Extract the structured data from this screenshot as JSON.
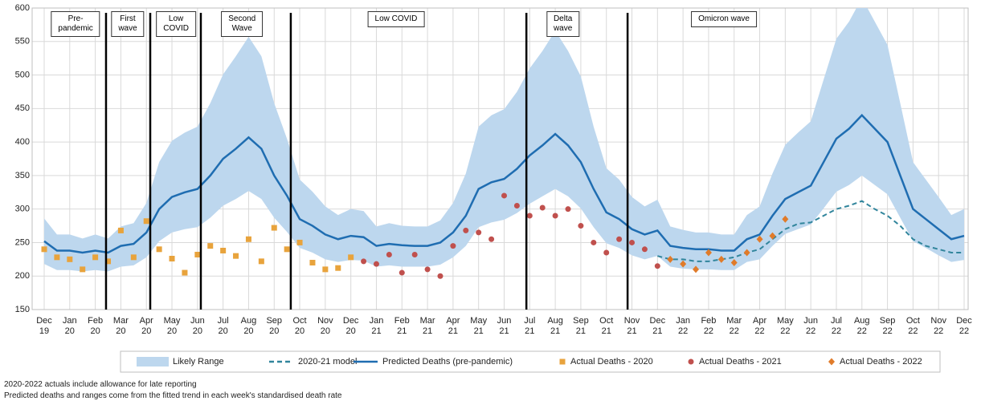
{
  "chart_data": {
    "type": "line",
    "ylim": [
      150,
      600
    ],
    "yticks": [
      150,
      200,
      250,
      300,
      350,
      400,
      450,
      500,
      550,
      600
    ],
    "xlim": [
      0,
      36
    ],
    "xticks": [
      {
        "value": 0,
        "label": "Dec\n19"
      },
      {
        "value": 1,
        "label": "Jan\n20"
      },
      {
        "value": 2,
        "label": "Feb\n20"
      },
      {
        "value": 3,
        "label": "Mar\n20"
      },
      {
        "value": 4,
        "label": "Apr\n20"
      },
      {
        "value": 5,
        "label": "May\n20"
      },
      {
        "value": 6,
        "label": "Jun\n20"
      },
      {
        "value": 7,
        "label": "Jul\n20"
      },
      {
        "value": 8,
        "label": "Aug\n20"
      },
      {
        "value": 9,
        "label": "Sep\n20"
      },
      {
        "value": 10,
        "label": "Oct\n20"
      },
      {
        "value": 11,
        "label": "Nov\n20"
      },
      {
        "value": 12,
        "label": "Dec\n20"
      },
      {
        "value": 13,
        "label": "Jan\n21"
      },
      {
        "value": 14,
        "label": "Feb\n21"
      },
      {
        "value": 15,
        "label": "Mar\n21"
      },
      {
        "value": 16,
        "label": "Apr\n21"
      },
      {
        "value": 17,
        "label": "May\n21"
      },
      {
        "value": 18,
        "label": "Jun\n21"
      },
      {
        "value": 19,
        "label": "Jul\n21"
      },
      {
        "value": 20,
        "label": "Aug\n21"
      },
      {
        "value": 21,
        "label": "Sep\n21"
      },
      {
        "value": 22,
        "label": "Oct\n21"
      },
      {
        "value": 23,
        "label": "Nov\n21"
      },
      {
        "value": 24,
        "label": "Dec\n21"
      },
      {
        "value": 25,
        "label": "Jan\n22"
      },
      {
        "value": 26,
        "label": "Feb\n22"
      },
      {
        "value": 27,
        "label": "Mar\n22"
      },
      {
        "value": 28,
        "label": "Apr\n22"
      },
      {
        "value": 29,
        "label": "May\n22"
      },
      {
        "value": 30,
        "label": "Jun\n22"
      },
      {
        "value": 31,
        "label": "Jul\n22"
      },
      {
        "value": 32,
        "label": "Aug\n22"
      },
      {
        "value": 33,
        "label": "Sep\n22"
      },
      {
        "value": 34,
        "label": "Oct\n22"
      },
      {
        "value": 35,
        "label": "Nov\n22"
      },
      {
        "value": 36,
        "label": "Dec\n22"
      }
    ],
    "grid": true,
    "series": [
      {
        "name": "Likely Range",
        "type": "band",
        "color": "#bdd7ee",
        "x": [
          0,
          0.5,
          1,
          1.5,
          2,
          2.5,
          3,
          3.5,
          4,
          4.5,
          5,
          5.5,
          6,
          6.5,
          7,
          7.5,
          8,
          8.5,
          9,
          9.5,
          10,
          10.5,
          11,
          11.5,
          12,
          12.5,
          13,
          13.5,
          14,
          14.5,
          15,
          15.5,
          16,
          16.5,
          17,
          17.5,
          18,
          18.5,
          19,
          19.5,
          20,
          20.5,
          21,
          21.5,
          22,
          22.5,
          23,
          23.5,
          24,
          24.5,
          25,
          25.5,
          26,
          26.5,
          27,
          27.5,
          28,
          28.5,
          29,
          29.5,
          30,
          30.5,
          31,
          31.5,
          32,
          32.5,
          33,
          33.5,
          34,
          34.5,
          35,
          35.5,
          36
        ],
        "high": [
          286,
          262,
          262,
          256,
          262,
          256,
          274,
          279,
          309,
          370,
          402,
          414,
          423,
          458,
          501,
          528,
          557,
          528,
          458,
          405,
          344,
          326,
          304,
          291,
          300,
          297,
          274,
          279,
          275,
          274,
          274,
          283,
          309,
          353,
          423,
          440,
          449,
          475,
          510,
          536,
          566,
          536,
          498,
          423,
          361,
          344,
          318,
          304,
          314,
          274,
          269,
          265,
          265,
          262,
          262,
          291,
          304,
          353,
          396,
          414,
          431,
          493,
          554,
          580,
          615,
          580,
          545,
          458,
          370,
          344,
          318,
          291,
          300
        ],
        "low": [
          218,
          209,
          209,
          207,
          209,
          207,
          214,
          216,
          228,
          252,
          265,
          270,
          273,
          287,
          305,
          315,
          327,
          315,
          287,
          266,
          242,
          235,
          225,
          221,
          224,
          223,
          214,
          216,
          214,
          214,
          214,
          217,
          228,
          245,
          273,
          280,
          284,
          294,
          308,
          319,
          330,
          319,
          301,
          273,
          249,
          242,
          231,
          225,
          230,
          214,
          211,
          210,
          210,
          209,
          209,
          221,
          225,
          245,
          263,
          270,
          277,
          301,
          326,
          336,
          350,
          336,
          322,
          287,
          252,
          242,
          231,
          221,
          224
        ]
      },
      {
        "name": "2020-21 model",
        "type": "line",
        "dash": true,
        "color": "#31859c",
        "x": [
          24,
          24.5,
          25,
          25.5,
          26,
          26.5,
          27,
          27.5,
          28,
          28.5,
          29,
          29.5,
          30,
          30.5,
          31,
          31.5,
          32,
          32.5,
          33,
          33.5,
          34,
          34.5,
          35,
          35.5,
          36
        ],
        "values": [
          230,
          225,
          225,
          222,
          222,
          225,
          228,
          235,
          240,
          255,
          270,
          278,
          280,
          290,
          300,
          305,
          312,
          300,
          290,
          275,
          255,
          245,
          240,
          235,
          235
        ]
      },
      {
        "name": "Predicted Deaths (pre-pandemic)",
        "type": "line",
        "color": "#1f6db1",
        "x": [
          0,
          0.5,
          1,
          1.5,
          2,
          2.5,
          3,
          3.5,
          4,
          4.5,
          5,
          5.5,
          6,
          6.5,
          7,
          7.5,
          8,
          8.5,
          9,
          9.5,
          10,
          10.5,
          11,
          11.5,
          12,
          12.5,
          13,
          13.5,
          14,
          14.5,
          15,
          15.5,
          16,
          16.5,
          17,
          17.5,
          18,
          18.5,
          19,
          19.5,
          20,
          20.5,
          21,
          21.5,
          22,
          22.5,
          23,
          23.5,
          24,
          24.5,
          25,
          25.5,
          26,
          26.5,
          27,
          27.5,
          28,
          28.5,
          29,
          29.5,
          30,
          30.5,
          31,
          31.5,
          32,
          32.5,
          33,
          33.5,
          34,
          34.5,
          35,
          35.5,
          36
        ],
        "values": [
          252,
          238,
          238,
          235,
          238,
          235,
          245,
          248,
          265,
          300,
          318,
          325,
          330,
          350,
          375,
          390,
          407,
          390,
          350,
          320,
          285,
          275,
          262,
          255,
          260,
          258,
          245,
          248,
          246,
          245,
          245,
          250,
          265,
          290,
          330,
          340,
          345,
          360,
          380,
          395,
          412,
          395,
          370,
          330,
          295,
          285,
          270,
          262,
          268,
          245,
          242,
          240,
          240,
          238,
          238,
          255,
          262,
          290,
          315,
          325,
          335,
          370,
          405,
          420,
          440,
          420,
          400,
          350,
          300,
          285,
          270,
          255,
          260
        ]
      },
      {
        "name": "Actual Deaths - 2020",
        "type": "scatter",
        "marker": "square",
        "color": "#e8a33c",
        "x": [
          0,
          0.5,
          1,
          1.5,
          2,
          2.5,
          3,
          3.5,
          4,
          4.5,
          5,
          5.5,
          6,
          6.5,
          7,
          7.5,
          8,
          8.5,
          9,
          9.5,
          10,
          10.5,
          11,
          11.5,
          12
        ],
        "values": [
          240,
          228,
          225,
          210,
          228,
          222,
          268,
          228,
          282,
          240,
          226,
          205,
          232,
          245,
          238,
          230,
          255,
          222,
          272,
          240,
          250,
          220,
          210,
          212,
          228
        ]
      },
      {
        "name": "Actual Deaths - 2021",
        "type": "scatter",
        "marker": "circle",
        "color": "#c0504d",
        "x": [
          12.5,
          13,
          13.5,
          14,
          14.5,
          15,
          15.5,
          16,
          16.5,
          17,
          17.5,
          18,
          18.5,
          19,
          19.5,
          20,
          20.5,
          21,
          21.5,
          22,
          22.5,
          23,
          23.5,
          24
        ],
        "values": [
          222,
          218,
          232,
          205,
          232,
          210,
          200,
          245,
          268,
          265,
          255,
          320,
          305,
          290,
          302,
          290,
          300,
          275,
          250,
          235,
          255,
          250,
          240,
          215
        ]
      },
      {
        "name": "Actual Deaths - 2022",
        "type": "scatter",
        "marker": "diamond",
        "color": "#e07b2a",
        "x": [
          24.5,
          25,
          25.5,
          26,
          26.5,
          27,
          27.5,
          28,
          28.5,
          29
        ],
        "values": [
          225,
          218,
          210,
          235,
          225,
          220,
          235,
          255,
          260,
          285
        ]
      }
    ],
    "dividers": [
      2.42,
      4.15,
      6.13,
      9.65,
      18.87,
      22.83
    ],
    "annotations": [
      {
        "text": "Pre-\npandemic",
        "x": 1.23
      },
      {
        "text": "First\nwave",
        "x": 3.27
      },
      {
        "text": "Low\nCOVID",
        "x": 5.16
      },
      {
        "text": "Second\nWave",
        "x": 7.74
      },
      {
        "text": "Low COVID",
        "x": 13.77
      },
      {
        "text": "Delta\nwave",
        "x": 20.3
      },
      {
        "text": "Omicron wave",
        "x": 26.6
      }
    ],
    "notes": [
      "2020-2022 actuals include allowance for late reporting",
      "Predicted deaths and ranges come from the fitted trend in each week's standardised death rate"
    ]
  }
}
